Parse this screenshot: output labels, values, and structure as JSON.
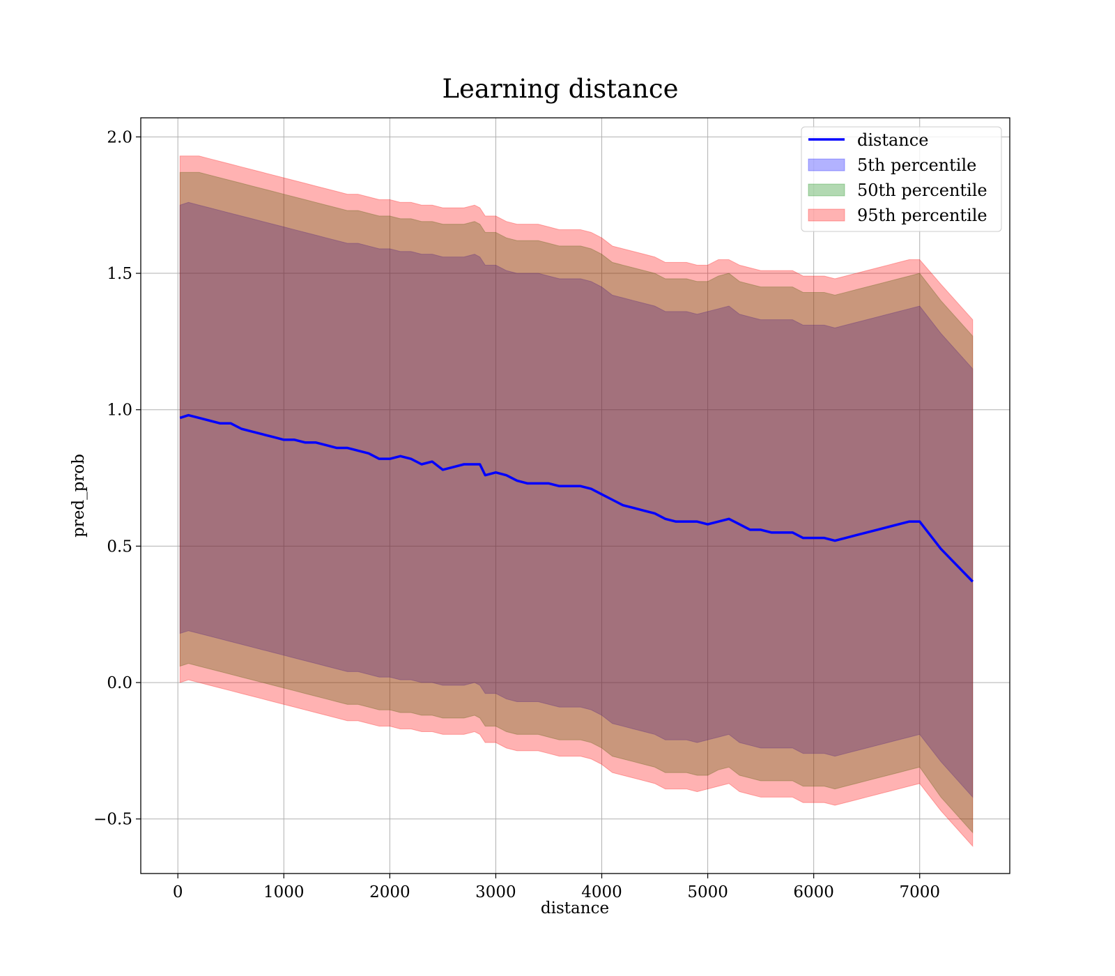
{
  "chart_data": {
    "type": "line",
    "title": "Learning distance",
    "xlabel": "distance",
    "ylabel": "pred_prob",
    "xlim": [
      -350,
      7850
    ],
    "ylim": [
      -0.7,
      2.07
    ],
    "grid": true,
    "legend_position": "top-right",
    "x_ticks": [
      0,
      1000,
      2000,
      3000,
      4000,
      5000,
      6000,
      7000
    ],
    "x_tick_labels": [
      "0",
      "1000",
      "2000",
      "3000",
      "4000",
      "5000",
      "6000",
      "7000"
    ],
    "y_ticks": [
      -0.5,
      0.0,
      0.5,
      1.0,
      1.5,
      2.0
    ],
    "y_tick_labels": [
      "−0.5",
      "0.0",
      "0.5",
      "1.0",
      "1.5",
      "2.0"
    ],
    "series": [
      {
        "name": "distance",
        "kind": "line",
        "color": "#0000ff"
      },
      {
        "name": "5th percentile",
        "kind": "band",
        "color": "#0000ff",
        "alpha": 0.3
      },
      {
        "name": "50th percentile",
        "kind": "band",
        "color": "#008000",
        "alpha": 0.3
      },
      {
        "name": "95th percentile",
        "kind": "band",
        "color": "#ff0000",
        "alpha": 0.3
      }
    ],
    "x": [
      20,
      100,
      200,
      300,
      400,
      500,
      600,
      700,
      800,
      900,
      1000,
      1100,
      1200,
      1300,
      1400,
      1500,
      1600,
      1700,
      1800,
      1900,
      2000,
      2100,
      2200,
      2300,
      2400,
      2500,
      2600,
      2700,
      2800,
      2850,
      2900,
      3000,
      3100,
      3200,
      3300,
      3400,
      3500,
      3600,
      3700,
      3800,
      3900,
      4000,
      4100,
      4200,
      4300,
      4400,
      4500,
      4600,
      4700,
      4800,
      4900,
      5000,
      5100,
      5200,
      5300,
      5400,
      5500,
      5600,
      5700,
      5800,
      5900,
      6000,
      6100,
      6200,
      6300,
      6400,
      6500,
      6600,
      6700,
      6800,
      6900,
      7000,
      7200,
      7500
    ],
    "distance_line": [
      0.97,
      0.98,
      0.97,
      0.96,
      0.95,
      0.95,
      0.93,
      0.92,
      0.91,
      0.9,
      0.89,
      0.89,
      0.88,
      0.88,
      0.87,
      0.86,
      0.86,
      0.85,
      0.84,
      0.82,
      0.82,
      0.83,
      0.82,
      0.8,
      0.81,
      0.78,
      0.79,
      0.8,
      0.8,
      0.8,
      0.76,
      0.77,
      0.76,
      0.74,
      0.73,
      0.73,
      0.73,
      0.72,
      0.72,
      0.72,
      0.71,
      0.69,
      0.67,
      0.65,
      0.64,
      0.63,
      0.62,
      0.6,
      0.59,
      0.59,
      0.59,
      0.58,
      0.59,
      0.6,
      0.58,
      0.56,
      0.56,
      0.55,
      0.55,
      0.55,
      0.53,
      0.53,
      0.53,
      0.52,
      0.53,
      0.54,
      0.55,
      0.56,
      0.57,
      0.58,
      0.59,
      0.59,
      0.49,
      0.37
    ],
    "p95_upper": [
      1.93,
      1.93,
      1.93,
      1.92,
      1.91,
      1.9,
      1.89,
      1.88,
      1.87,
      1.86,
      1.85,
      1.84,
      1.83,
      1.82,
      1.81,
      1.8,
      1.79,
      1.79,
      1.78,
      1.77,
      1.77,
      1.76,
      1.76,
      1.75,
      1.75,
      1.74,
      1.74,
      1.74,
      1.75,
      1.74,
      1.71,
      1.71,
      1.69,
      1.68,
      1.68,
      1.68,
      1.67,
      1.66,
      1.66,
      1.66,
      1.65,
      1.63,
      1.6,
      1.59,
      1.58,
      1.57,
      1.56,
      1.54,
      1.54,
      1.54,
      1.53,
      1.53,
      1.55,
      1.55,
      1.53,
      1.52,
      1.51,
      1.51,
      1.51,
      1.51,
      1.49,
      1.49,
      1.49,
      1.48,
      1.49,
      1.5,
      1.51,
      1.52,
      1.53,
      1.54,
      1.55,
      1.55,
      1.46,
      1.33
    ],
    "p50_upper": [
      1.87,
      1.87,
      1.87,
      1.86,
      1.85,
      1.84,
      1.83,
      1.82,
      1.81,
      1.8,
      1.79,
      1.78,
      1.77,
      1.76,
      1.75,
      1.74,
      1.73,
      1.73,
      1.72,
      1.71,
      1.71,
      1.7,
      1.7,
      1.69,
      1.69,
      1.68,
      1.68,
      1.68,
      1.69,
      1.68,
      1.65,
      1.65,
      1.63,
      1.62,
      1.62,
      1.62,
      1.61,
      1.6,
      1.6,
      1.6,
      1.59,
      1.57,
      1.54,
      1.53,
      1.52,
      1.51,
      1.5,
      1.48,
      1.48,
      1.48,
      1.47,
      1.47,
      1.49,
      1.5,
      1.47,
      1.46,
      1.45,
      1.45,
      1.45,
      1.45,
      1.43,
      1.43,
      1.43,
      1.42,
      1.43,
      1.44,
      1.45,
      1.46,
      1.47,
      1.48,
      1.49,
      1.5,
      1.4,
      1.27
    ],
    "p5_upper": [
      1.75,
      1.76,
      1.75,
      1.74,
      1.73,
      1.72,
      1.71,
      1.7,
      1.69,
      1.68,
      1.67,
      1.66,
      1.65,
      1.64,
      1.63,
      1.62,
      1.61,
      1.61,
      1.6,
      1.59,
      1.59,
      1.58,
      1.58,
      1.57,
      1.57,
      1.56,
      1.56,
      1.56,
      1.57,
      1.56,
      1.53,
      1.53,
      1.51,
      1.5,
      1.5,
      1.5,
      1.49,
      1.48,
      1.48,
      1.48,
      1.47,
      1.45,
      1.42,
      1.41,
      1.4,
      1.39,
      1.38,
      1.36,
      1.36,
      1.36,
      1.35,
      1.36,
      1.37,
      1.38,
      1.35,
      1.34,
      1.33,
      1.33,
      1.33,
      1.33,
      1.31,
      1.31,
      1.31,
      1.3,
      1.31,
      1.32,
      1.33,
      1.34,
      1.35,
      1.36,
      1.37,
      1.38,
      1.28,
      1.15
    ],
    "p5_lower": [
      0.18,
      0.19,
      0.18,
      0.17,
      0.16,
      0.15,
      0.14,
      0.13,
      0.12,
      0.11,
      0.1,
      0.09,
      0.08,
      0.07,
      0.06,
      0.05,
      0.04,
      0.04,
      0.03,
      0.02,
      0.02,
      0.01,
      0.01,
      0.0,
      0.0,
      -0.01,
      -0.01,
      -0.01,
      0.0,
      -0.01,
      -0.04,
      -0.04,
      -0.06,
      -0.07,
      -0.07,
      -0.07,
      -0.08,
      -0.09,
      -0.09,
      -0.09,
      -0.1,
      -0.12,
      -0.15,
      -0.16,
      -0.17,
      -0.18,
      -0.19,
      -0.21,
      -0.21,
      -0.21,
      -0.22,
      -0.21,
      -0.2,
      -0.19,
      -0.22,
      -0.23,
      -0.24,
      -0.24,
      -0.24,
      -0.24,
      -0.26,
      -0.26,
      -0.26,
      -0.27,
      -0.26,
      -0.25,
      -0.24,
      -0.23,
      -0.22,
      -0.21,
      -0.2,
      -0.19,
      -0.29,
      -0.42
    ],
    "p50_lower": [
      0.06,
      0.07,
      0.06,
      0.05,
      0.04,
      0.03,
      0.02,
      0.01,
      0.0,
      -0.01,
      -0.02,
      -0.03,
      -0.04,
      -0.05,
      -0.06,
      -0.07,
      -0.08,
      -0.08,
      -0.09,
      -0.1,
      -0.1,
      -0.11,
      -0.11,
      -0.12,
      -0.12,
      -0.13,
      -0.13,
      -0.13,
      -0.12,
      -0.13,
      -0.16,
      -0.16,
      -0.18,
      -0.19,
      -0.19,
      -0.19,
      -0.2,
      -0.21,
      -0.21,
      -0.21,
      -0.22,
      -0.24,
      -0.27,
      -0.28,
      -0.29,
      -0.3,
      -0.31,
      -0.33,
      -0.33,
      -0.33,
      -0.34,
      -0.34,
      -0.32,
      -0.31,
      -0.34,
      -0.35,
      -0.36,
      -0.36,
      -0.36,
      -0.36,
      -0.38,
      -0.38,
      -0.38,
      -0.39,
      -0.38,
      -0.37,
      -0.36,
      -0.35,
      -0.34,
      -0.33,
      -0.32,
      -0.31,
      -0.42,
      -0.55
    ],
    "p95_lower": [
      0.0,
      0.01,
      0.0,
      -0.01,
      -0.02,
      -0.03,
      -0.04,
      -0.05,
      -0.06,
      -0.07,
      -0.08,
      -0.09,
      -0.1,
      -0.11,
      -0.12,
      -0.13,
      -0.14,
      -0.14,
      -0.15,
      -0.16,
      -0.16,
      -0.17,
      -0.17,
      -0.18,
      -0.18,
      -0.19,
      -0.19,
      -0.19,
      -0.18,
      -0.19,
      -0.22,
      -0.22,
      -0.24,
      -0.25,
      -0.25,
      -0.25,
      -0.26,
      -0.27,
      -0.27,
      -0.27,
      -0.28,
      -0.3,
      -0.33,
      -0.34,
      -0.35,
      -0.36,
      -0.37,
      -0.39,
      -0.39,
      -0.39,
      -0.4,
      -0.39,
      -0.38,
      -0.37,
      -0.4,
      -0.41,
      -0.42,
      -0.42,
      -0.42,
      -0.42,
      -0.44,
      -0.44,
      -0.44,
      -0.45,
      -0.44,
      -0.43,
      -0.42,
      -0.41,
      -0.4,
      -0.39,
      -0.38,
      -0.37,
      -0.47,
      -0.6
    ]
  }
}
